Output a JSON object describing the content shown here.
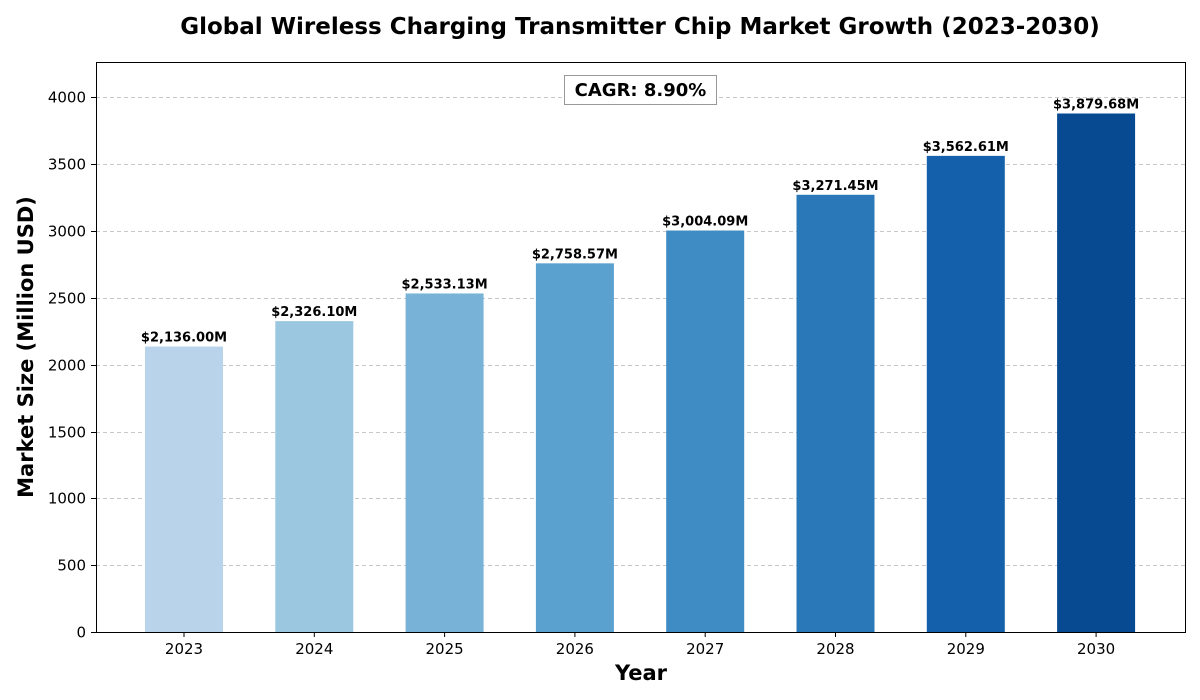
{
  "chart_data": {
    "type": "bar",
    "title": "Global Wireless Charging Transmitter Chip Market Growth (2023-2030)",
    "xlabel": "Year",
    "ylabel": "Market Size (Million USD)",
    "categories": [
      "2023",
      "2024",
      "2025",
      "2026",
      "2027",
      "2028",
      "2029",
      "2030"
    ],
    "values": [
      2136.0,
      2326.1,
      2533.13,
      2758.57,
      3004.09,
      3271.45,
      3562.61,
      3879.68
    ],
    "data_labels": [
      "$2,136.00M",
      "$2,326.10M",
      "$2,533.13M",
      "$2,758.57M",
      "$3,004.09M",
      "$3,271.45M",
      "$3,562.61M",
      "$3,879.68M"
    ],
    "bar_colors": [
      "#b9d4ea",
      "#9bc7e0",
      "#78b3d7",
      "#5aa1cf",
      "#3f8bc3",
      "#2b78b9",
      "#1460aa",
      "#084a91"
    ],
    "ylim": [
      0,
      4265
    ],
    "yticks": [
      0,
      500,
      1000,
      1500,
      2000,
      2500,
      3000,
      3500,
      4000
    ],
    "ytick_labels": [
      "0",
      "500",
      "1000",
      "1500",
      "2000",
      "2500",
      "3000",
      "3500",
      "4000"
    ],
    "grid": "y-dashed",
    "annotation": "CAGR: 8.90%"
  }
}
